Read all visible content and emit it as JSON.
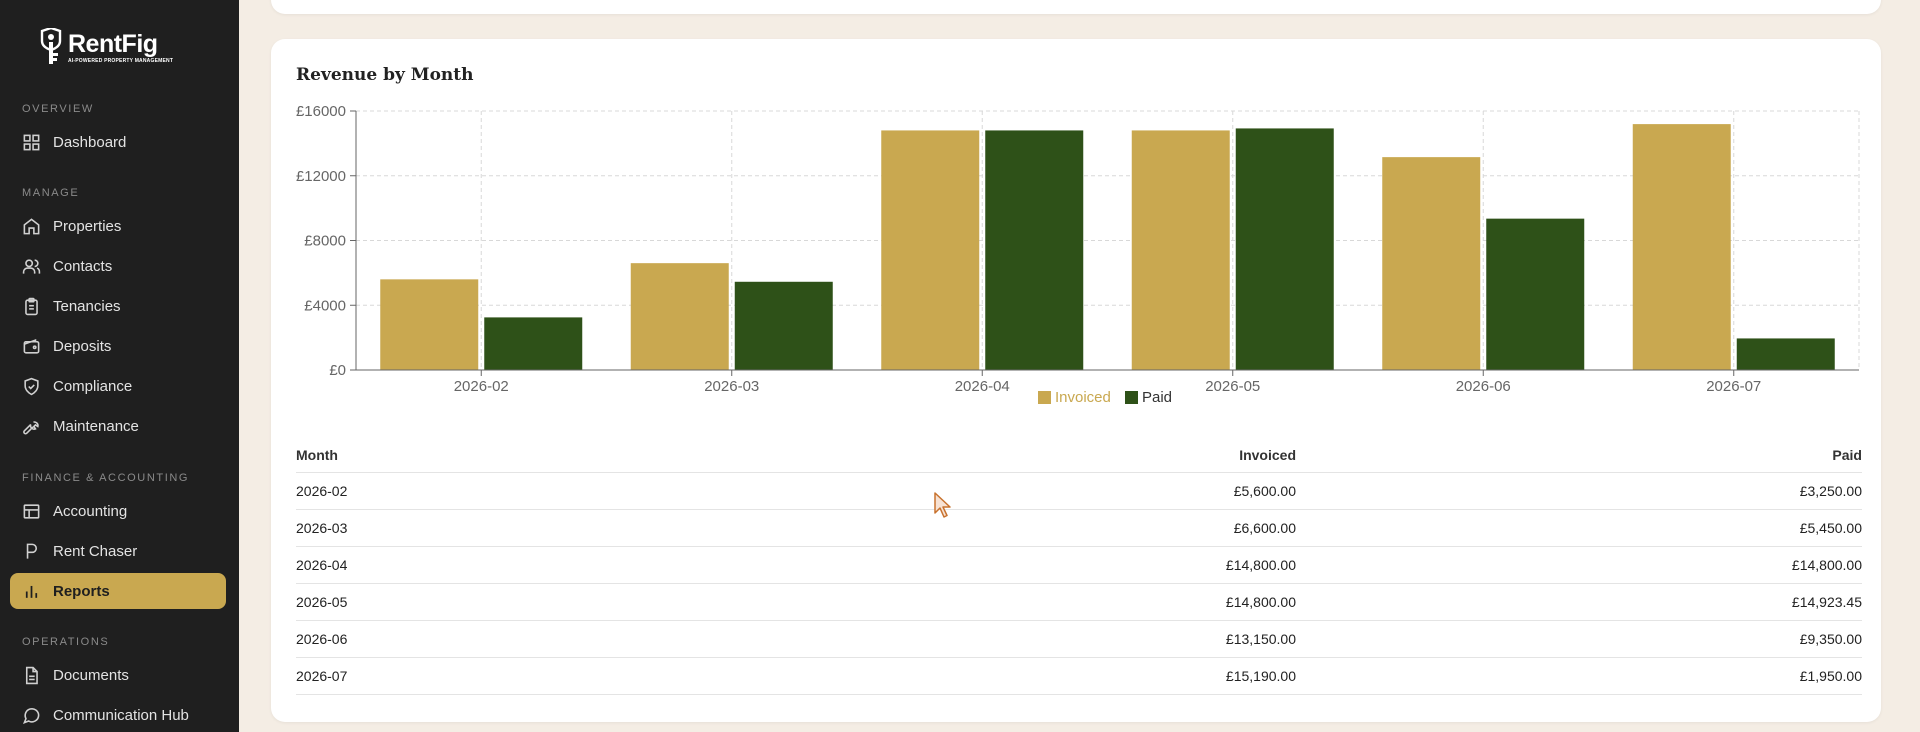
{
  "brand": {
    "name": "RentFig",
    "tagline": "AI-POWERED PROPERTY MANAGEMENT"
  },
  "sidebar": {
    "sections": [
      {
        "label": "OVERVIEW",
        "items": [
          {
            "label": "Dashboard",
            "icon": "grid-icon"
          }
        ]
      },
      {
        "label": "MANAGE",
        "items": [
          {
            "label": "Properties",
            "icon": "home-icon"
          },
          {
            "label": "Contacts",
            "icon": "users-icon"
          },
          {
            "label": "Tenancies",
            "icon": "clipboard-icon"
          },
          {
            "label": "Deposits",
            "icon": "wallet-icon"
          },
          {
            "label": "Compliance",
            "icon": "shield-icon"
          },
          {
            "label": "Maintenance",
            "icon": "wrench-icon"
          }
        ]
      },
      {
        "label": "FINANCE & ACCOUNTING",
        "items": [
          {
            "label": "Accounting",
            "icon": "table-icon"
          },
          {
            "label": "Rent Chaser",
            "icon": "p-icon"
          },
          {
            "label": "Reports",
            "icon": "bar-chart-icon",
            "active": true
          }
        ]
      },
      {
        "label": "OPERATIONS",
        "items": [
          {
            "label": "Documents",
            "icon": "document-icon"
          },
          {
            "label": "Communication Hub",
            "icon": "chat-icon"
          }
        ]
      }
    ]
  },
  "report": {
    "title": "Revenue by Month",
    "table": {
      "headers": {
        "month": "Month",
        "invoiced": "Invoiced",
        "paid": "Paid"
      },
      "rows": [
        {
          "month": "2026-02",
          "invoiced": "£5,600.00",
          "paid": "£3,250.00"
        },
        {
          "month": "2026-03",
          "invoiced": "£6,600.00",
          "paid": "£5,450.00"
        },
        {
          "month": "2026-04",
          "invoiced": "£14,800.00",
          "paid": "£14,800.00"
        },
        {
          "month": "2026-05",
          "invoiced": "£14,800.00",
          "paid": "£14,923.45"
        },
        {
          "month": "2026-06",
          "invoiced": "£13,150.00",
          "paid": "£9,350.00"
        },
        {
          "month": "2026-07",
          "invoiced": "£15,190.00",
          "paid": "£1,950.00"
        }
      ]
    }
  },
  "chart_data": {
    "type": "bar",
    "categories": [
      "2026-02",
      "2026-03",
      "2026-04",
      "2026-05",
      "2026-06",
      "2026-07"
    ],
    "series": [
      {
        "name": "Invoiced",
        "color": "#c9a850",
        "values": [
          5600,
          6600,
          14800,
          14800,
          13150,
          15190
        ]
      },
      {
        "name": "Paid",
        "color": "#2e5118",
        "values": [
          3250,
          5450,
          14800,
          14923.45,
          9350,
          1950
        ]
      }
    ],
    "yticks": [
      "£0",
      "£4000",
      "£8000",
      "£12000",
      "£16000"
    ],
    "ylim": [
      0,
      16000
    ],
    "grid": true,
    "legend_position": "bottom-center"
  }
}
